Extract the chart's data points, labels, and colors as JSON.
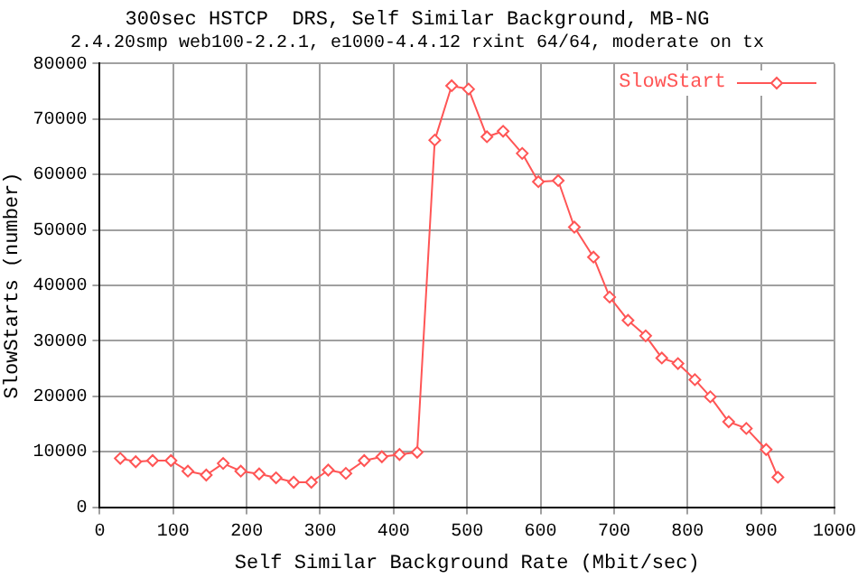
{
  "chart_data": {
    "type": "line",
    "title": "300sec HSTCP  DRS, Self Similar Background, MB-NG",
    "subtitle": "2.4.20smp web100-2.2.1, e1000-4.4.12 rxint 64/64, moderate on tx",
    "xlabel": "Self Similar Background Rate (Mbit/sec)",
    "ylabel": "SlowStarts (number)",
    "x": [
      28,
      49,
      72,
      97,
      120,
      145,
      168,
      192,
      217,
      240,
      264,
      288,
      311,
      335,
      360,
      384,
      408,
      432,
      456,
      479,
      502,
      527,
      549,
      575,
      597,
      624,
      646,
      672,
      694,
      719,
      743,
      765,
      787,
      810,
      831,
      856,
      880,
      907,
      923
    ],
    "series": [
      {
        "name": "SlowStart",
        "color": "#ff5555",
        "values": [
          8800,
          8200,
          8400,
          8400,
          6500,
          5800,
          7900,
          6500,
          6000,
          5300,
          4500,
          4500,
          6700,
          6100,
          8400,
          9100,
          9500,
          9900,
          66200,
          76000,
          75400,
          66800,
          67800,
          63800,
          58700,
          58900,
          50500,
          45100,
          37900,
          33700,
          30900,
          26900,
          25900,
          23000,
          19900,
          15400,
          14200,
          10400,
          5400
        ]
      }
    ],
    "xlim": [
      0,
      1000
    ],
    "xticks": [
      0,
      100,
      200,
      300,
      400,
      500,
      600,
      700,
      800,
      900,
      1000
    ],
    "ylim": [
      0,
      80000
    ],
    "yticks": [
      0,
      10000,
      20000,
      30000,
      40000,
      50000,
      60000,
      70000,
      80000
    ],
    "grid": true,
    "legend": "top right",
    "marker": "diamond",
    "line_style": "solid"
  }
}
